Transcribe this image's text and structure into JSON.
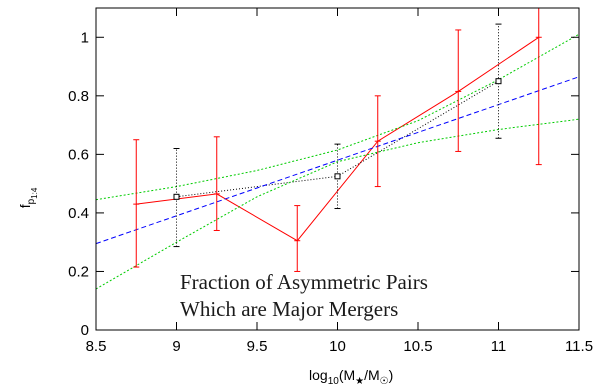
{
  "chart_data": {
    "type": "line",
    "xlim": [
      8.5,
      11.5
    ],
    "ylim": [
      0,
      1.1
    ],
    "xticks": [
      "8.5",
      "9",
      "9.5",
      "10",
      "10.5",
      "11",
      "11.5"
    ],
    "yticks": [
      "0",
      "0.2",
      "0.4",
      "0.6",
      "0.8",
      "1"
    ],
    "xlabel": {
      "main": "log",
      "sub": "10",
      "rest": "(M",
      "star": "★",
      "slash": "/M",
      "sun": "☉",
      "close": ")"
    },
    "ylabel": {
      "main": "f",
      "sub": "p",
      "subsub": "1:4"
    },
    "annotation": [
      "Fraction of Asymmetric Pairs",
      "Which are Major Mergers"
    ],
    "grid": false,
    "series": [
      {
        "style": "red-solid-errorbars",
        "color": "#ff0000",
        "x": [
          8.75,
          9.25,
          9.75,
          10.25,
          10.75,
          11.25
        ],
        "y": [
          0.43,
          0.465,
          0.305,
          0.645,
          0.815,
          1.0
        ],
        "ylow": [
          0.215,
          0.34,
          0.2,
          0.49,
          0.61,
          0.565
        ],
        "yhigh": [
          0.65,
          0.66,
          0.425,
          0.8,
          1.025,
          1.1
        ]
      },
      {
        "style": "black-dotted-squares-errorbars",
        "color": "#000000",
        "x": [
          9.0,
          10.0,
          11.0
        ],
        "y": [
          0.455,
          0.525,
          0.85
        ],
        "ylow": [
          0.285,
          0.415,
          0.655
        ],
        "yhigh": [
          0.62,
          0.635,
          1.045
        ]
      },
      {
        "style": "blue-dashed-fit",
        "color": "#0000ff",
        "x": [
          8.5,
          11.5
        ],
        "y": [
          0.295,
          0.865
        ]
      },
      {
        "style": "green-dotted-upper",
        "color": "#00cc00",
        "x": [
          8.5,
          9.0,
          9.5,
          10.0,
          10.5,
          11.0,
          11.5
        ],
        "y": [
          0.445,
          0.49,
          0.545,
          0.615,
          0.715,
          0.855,
          1.01
        ]
      },
      {
        "style": "green-dotted-lower",
        "color": "#00cc00",
        "x": [
          8.5,
          9.0,
          9.5,
          10.0,
          10.5,
          11.0,
          11.5
        ],
        "y": [
          0.14,
          0.3,
          0.455,
          0.575,
          0.64,
          0.685,
          0.72
        ]
      }
    ]
  }
}
